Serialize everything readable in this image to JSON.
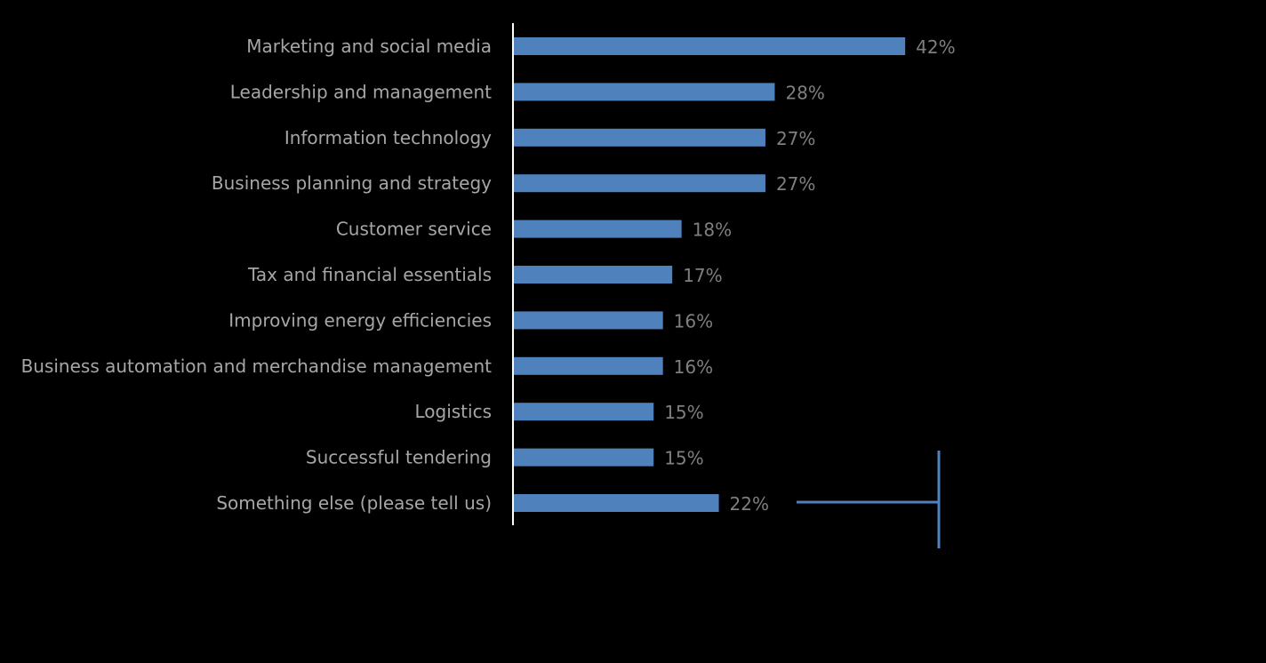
{
  "chart_data": {
    "type": "bar",
    "orientation": "horizontal",
    "title": "",
    "xlabel": "",
    "ylabel": "",
    "categories": [
      "Marketing and social media",
      "Leadership and management",
      "Information technology",
      "Business planning and strategy",
      "Customer service",
      "Tax and financial essentials",
      "Improving energy efficiencies",
      "Business automation and merchandise management",
      "Logistics",
      "Successful tendering",
      "Something else (please tell us)"
    ],
    "values": [
      42,
      28,
      27,
      27,
      18,
      17,
      16,
      16,
      15,
      15,
      22
    ],
    "data_labels": [
      "42%",
      "28%",
      "27%",
      "27%",
      "18%",
      "17%",
      "16%",
      "16%",
      "15%",
      "15%",
      "22%"
    ],
    "xlim": [
      0,
      100
    ],
    "unit": "%",
    "grid": false,
    "legend": "none",
    "bar_color": "#4f81bd",
    "callout_color": "#4f81bd"
  }
}
